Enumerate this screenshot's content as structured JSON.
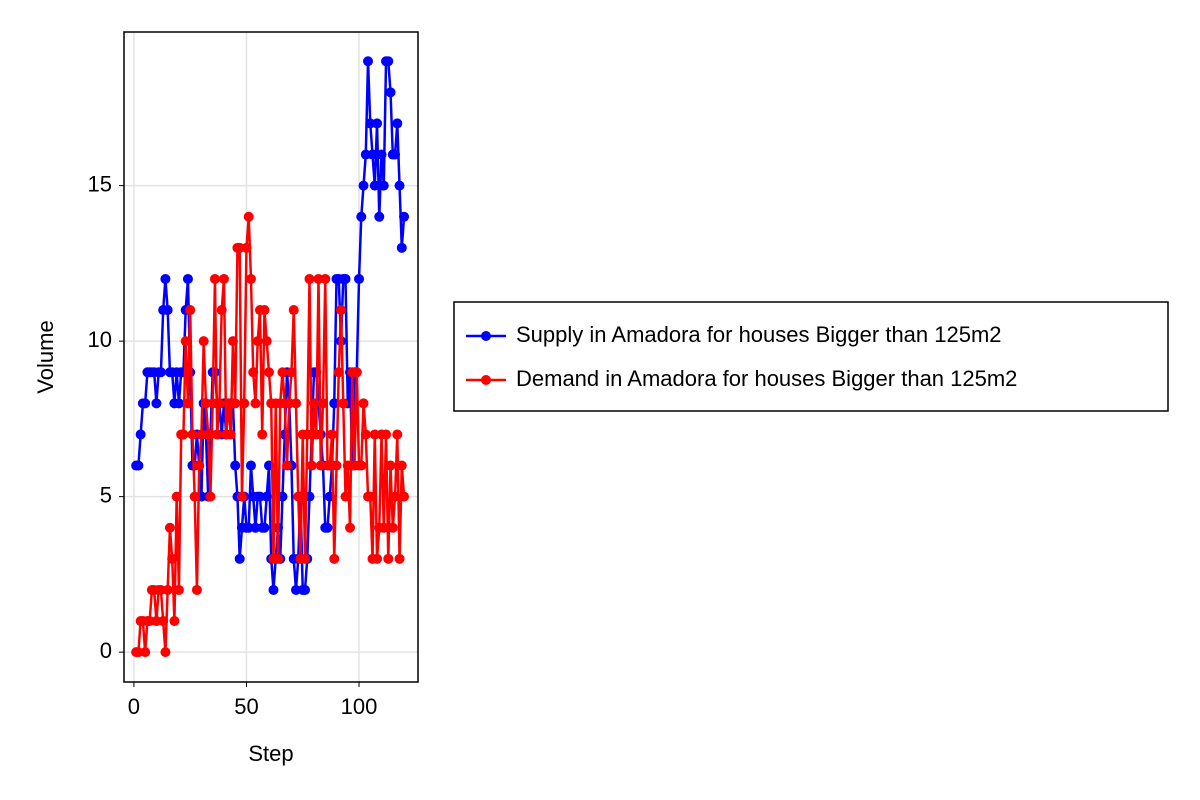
{
  "chart_data": {
    "type": "line",
    "x_label": "Step",
    "y_label": "Volume",
    "x": [
      1,
      2,
      3,
      4,
      5,
      6,
      7,
      8,
      9,
      10,
      11,
      12,
      13,
      14,
      15,
      16,
      17,
      18,
      19,
      20,
      21,
      22,
      23,
      24,
      25,
      26,
      27,
      28,
      29,
      30,
      31,
      32,
      33,
      34,
      35,
      36,
      37,
      38,
      39,
      40,
      41,
      42,
      43,
      44,
      45,
      46,
      47,
      48,
      49,
      50,
      51,
      52,
      53,
      54,
      55,
      56,
      57,
      58,
      59,
      60,
      61,
      62,
      63,
      64,
      65,
      66,
      67,
      68,
      69,
      70,
      71,
      72,
      73,
      74,
      75,
      76,
      77,
      78,
      79,
      80,
      81,
      82,
      83,
      84,
      85,
      86,
      87,
      88,
      89,
      90,
      91,
      92,
      93,
      94,
      95,
      96,
      97,
      98,
      99,
      100,
      101,
      102,
      103,
      104,
      105,
      106,
      107,
      108,
      109,
      110,
      111,
      112,
      113,
      114,
      115,
      116,
      117,
      118,
      119,
      120
    ],
    "series": [
      {
        "name": "Supply in Amadora for houses Bigger than 125m2",
        "color": "#0000ff",
        "values": [
          6,
          6,
          7,
          8,
          8,
          9,
          9,
          9,
          9,
          8,
          9,
          9,
          11,
          12,
          11,
          9,
          9,
          8,
          9,
          8,
          9,
          9,
          11,
          12,
          9,
          6,
          6,
          7,
          6,
          5,
          8,
          7,
          5,
          7,
          9,
          9,
          8,
          8,
          7,
          8,
          7,
          8,
          8,
          8,
          6,
          5,
          3,
          4,
          5,
          4,
          4,
          6,
          5,
          4,
          5,
          5,
          4,
          4,
          5,
          6,
          3,
          2,
          3,
          4,
          3,
          5,
          7,
          9,
          8,
          6,
          3,
          2,
          3,
          5,
          2,
          2,
          3,
          5,
          7,
          9,
          9,
          8,
          7,
          6,
          4,
          4,
          5,
          6,
          8,
          12,
          12,
          10,
          12,
          12,
          8,
          9,
          6,
          9,
          9,
          12,
          14,
          15,
          16,
          19,
          17,
          16,
          15,
          17,
          14,
          16,
          15,
          19,
          19,
          18,
          16,
          16,
          17,
          15,
          13,
          14
        ]
      },
      {
        "name": "Demand in Amadora for houses Bigger than 125m2",
        "color": "#ff0000",
        "values": [
          0,
          0,
          1,
          1,
          0,
          1,
          1,
          2,
          2,
          1,
          2,
          2,
          1,
          0,
          2,
          4,
          3,
          1,
          5,
          2,
          7,
          7,
          10,
          8,
          11,
          7,
          5,
          2,
          6,
          7,
          10,
          8,
          7,
          5,
          8,
          12,
          7,
          8,
          11,
          12,
          7,
          8,
          7,
          10,
          8,
          13,
          13,
          5,
          8,
          13,
          14,
          12,
          9,
          8,
          10,
          11,
          7,
          11,
          10,
          9,
          8,
          3,
          8,
          3,
          8,
          9,
          8,
          6,
          8,
          9,
          11,
          8,
          5,
          3,
          7,
          3,
          7,
          12,
          6,
          8,
          7,
          12,
          6,
          8,
          12,
          6,
          6,
          7,
          3,
          6,
          9,
          11,
          8,
          5,
          6,
          4,
          9,
          6,
          9,
          6,
          6,
          8,
          7,
          5,
          5,
          3,
          7,
          3,
          4,
          7,
          4,
          7,
          3,
          6,
          4,
          5,
          7,
          3,
          6,
          5
        ]
      }
    ],
    "xlim": [
      -4.4,
      126.2
    ],
    "ylim": [
      -0.96,
      19.94
    ],
    "xticks": [
      0,
      50,
      100
    ],
    "yticks": [
      0,
      5,
      10,
      15
    ],
    "grid": true,
    "legend": "right"
  }
}
